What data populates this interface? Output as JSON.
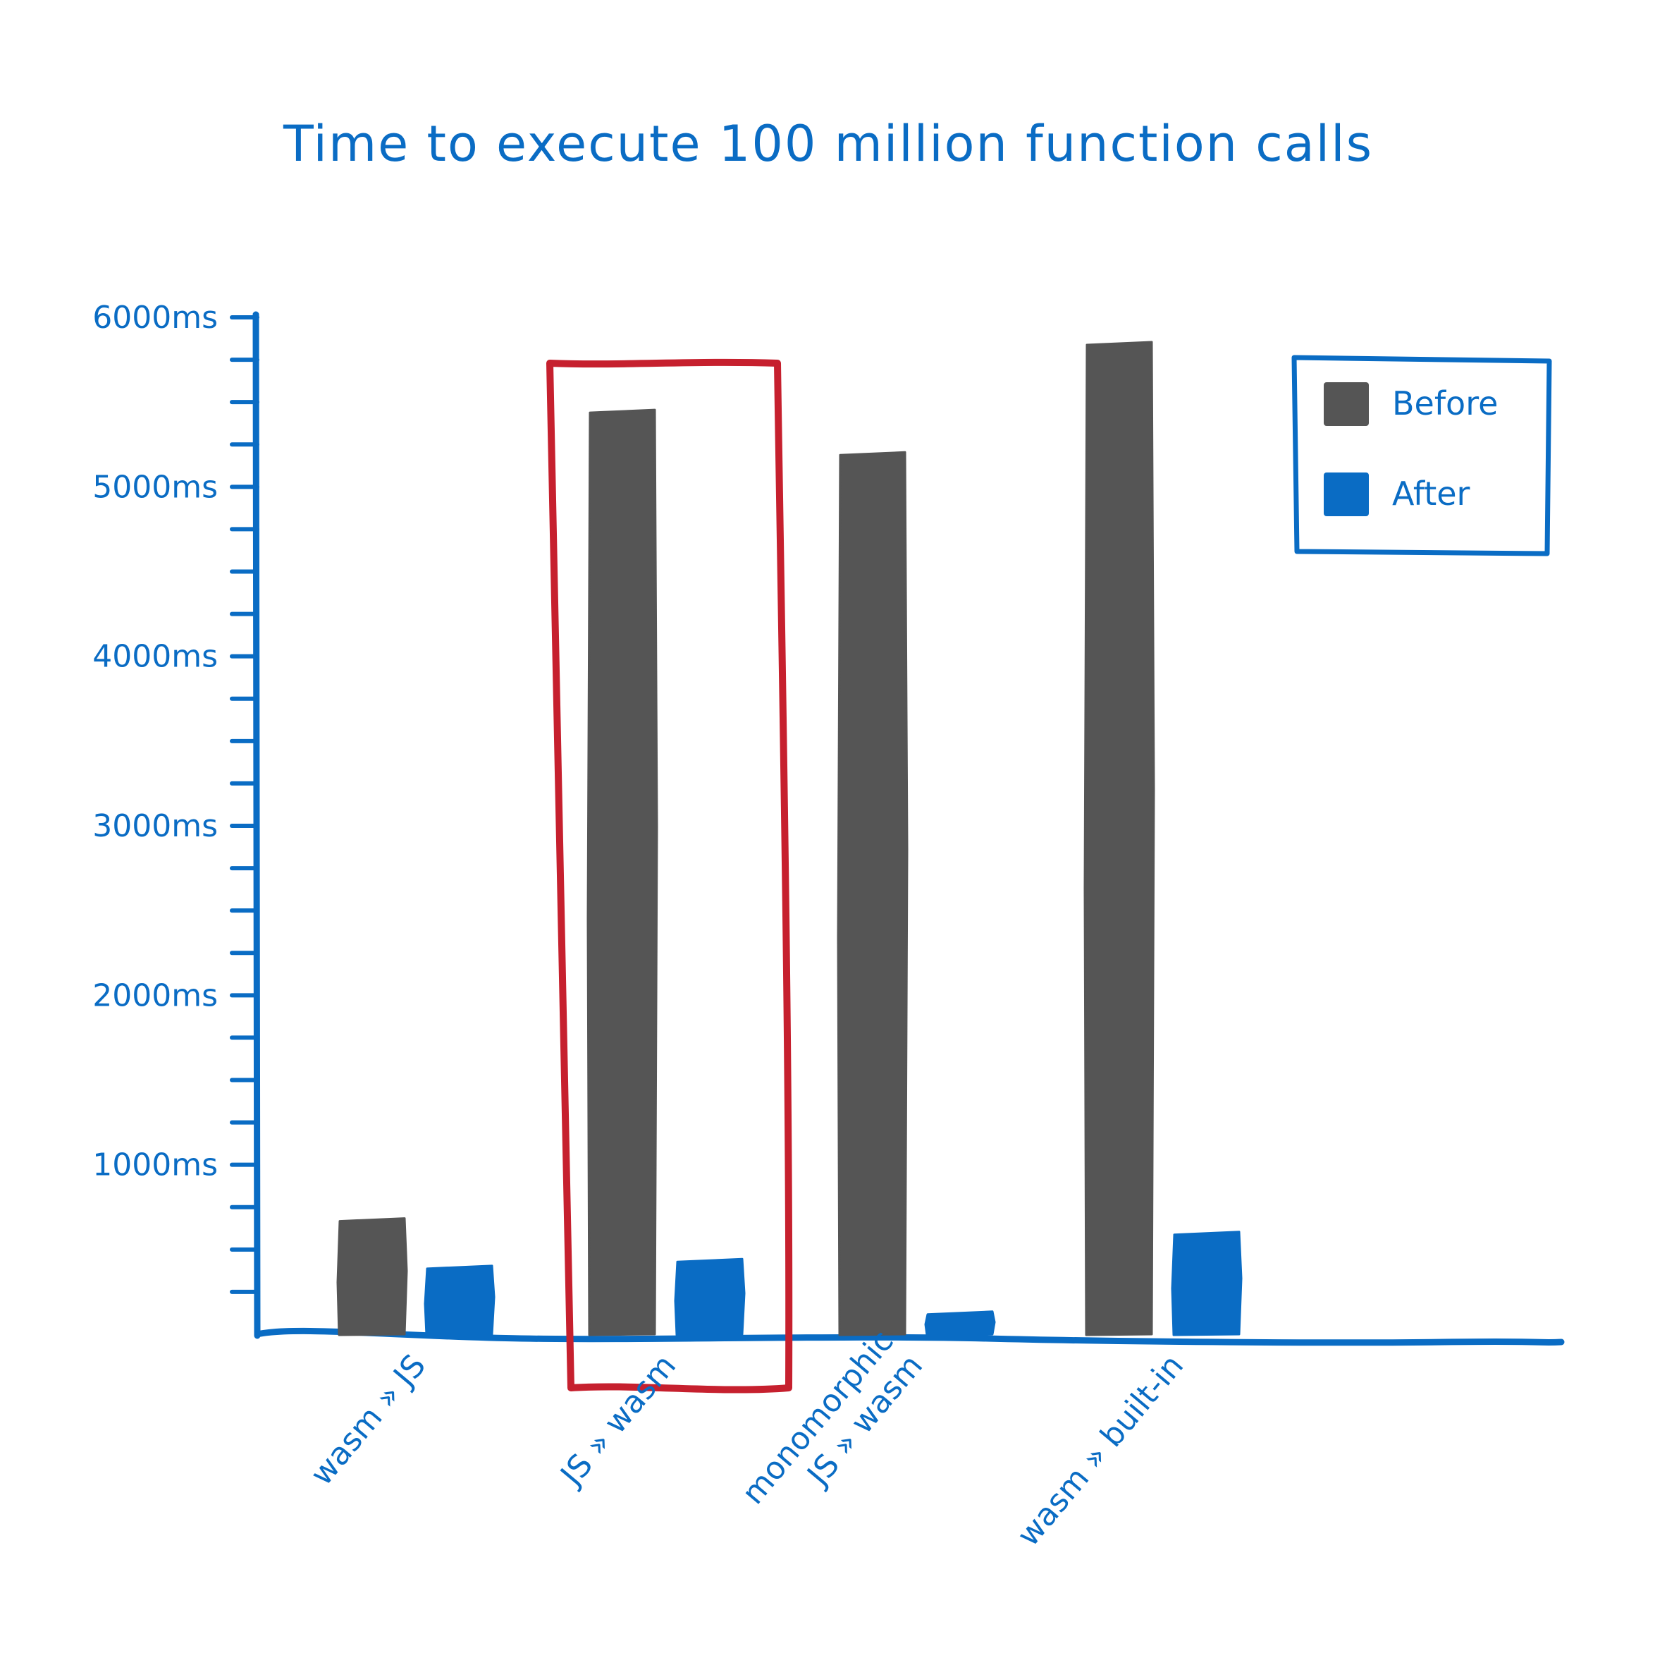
{
  "colors": {
    "ink": "#0a6cc4",
    "before": "#555555",
    "after": "#0a6cc4",
    "highlight": "#c6202e"
  },
  "chart_data": {
    "type": "bar",
    "title": "Time to execute 100 million function calls",
    "xlabel": "",
    "ylabel": "",
    "ylim": [
      0,
      6000
    ],
    "y_unit": "ms",
    "y_ticks": [
      "1000ms",
      "2000ms",
      "3000ms",
      "4000ms",
      "5000ms",
      "6000ms"
    ],
    "y_tick_values": [
      1000,
      2000,
      3000,
      4000,
      5000,
      6000
    ],
    "minor_tick_step": 250,
    "categories": [
      [
        "wasm » JS"
      ],
      [
        "JS » wasm"
      ],
      [
        "monomorphic",
        "JS » wasm"
      ],
      [
        "wasm » built-in"
      ]
    ],
    "series": [
      {
        "name": "Before",
        "color": "#555555",
        "values": [
          680,
          5450,
          5200,
          5850
        ]
      },
      {
        "name": "After",
        "color": "#0a6cc4",
        "values": [
          400,
          440,
          130,
          600
        ]
      }
    ],
    "legend": {
      "position": "top-right",
      "entries": [
        "Before",
        "After"
      ]
    },
    "highlighted_category": 1,
    "grid": false
  }
}
